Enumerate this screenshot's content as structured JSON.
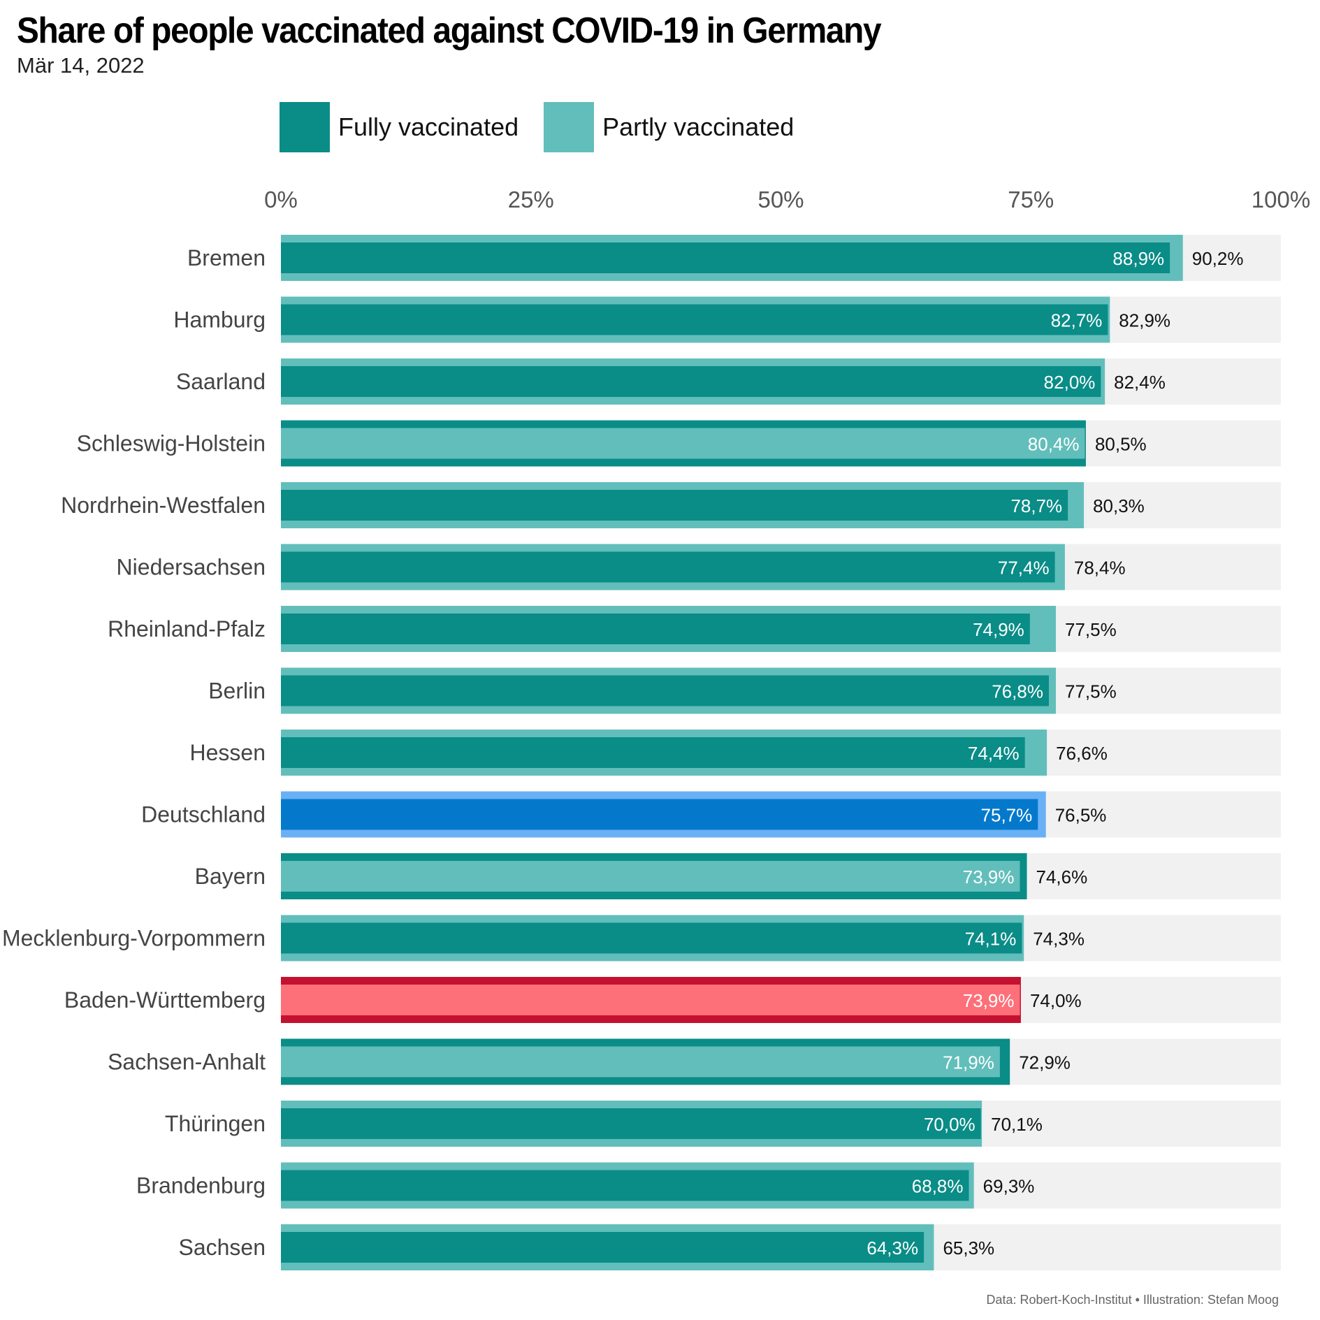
{
  "title": "Share of people vaccinated against COVID-19 in Germany",
  "subtitle": "Mär 14, 2022",
  "legend": {
    "fully": {
      "label": "Fully vaccinated",
      "color": "#0a8c87"
    },
    "partly": {
      "label": "Partly vaccinated",
      "color": "#62bebb"
    }
  },
  "footer": "Data: Robert-Koch-Institut • Illustration: Stefan Moog",
  "colors": {
    "track": "#f1f1f1",
    "highlight_deutschland": {
      "fully": "#0479cc",
      "partly": "#6ab0f5"
    },
    "highlight_bw": {
      "fully": "#c4112f",
      "partly": "#fd707a"
    }
  },
  "chart_data": {
    "type": "bar",
    "orientation": "horizontal",
    "xlim": [
      0,
      100
    ],
    "xticks": [
      "0%",
      "25%",
      "50%",
      "75%",
      "100%"
    ],
    "categories": [
      "Bremen",
      "Hamburg",
      "Saarland",
      "Schleswig-Holstein",
      "Nordrhein-Westfalen",
      "Niedersachsen",
      "Rheinland-Pfalz",
      "Berlin",
      "Hessen",
      "Deutschland",
      "Bayern",
      "Mecklenburg-Vorpommern",
      "Baden-Württemberg",
      "Sachsen-Anhalt",
      "Thüringen",
      "Brandenburg",
      "Sachsen"
    ],
    "series": [
      {
        "name": "Fully vaccinated",
        "values": [
          88.9,
          82.7,
          82.0,
          80.4,
          78.7,
          77.4,
          74.9,
          76.8,
          74.4,
          75.7,
          73.9,
          74.1,
          73.9,
          71.9,
          70.0,
          68.8,
          64.3
        ],
        "labels": [
          "88,9%",
          "82,7%",
          "82,0%",
          "80,4%",
          "78,7%",
          "77,4%",
          "74,9%",
          "76,8%",
          "74,4%",
          "75,7%",
          "73,9%",
          "74,1%",
          "73,9%",
          "71,9%",
          "70,0%",
          "68,8%",
          "64,3%"
        ]
      },
      {
        "name": "Partly vaccinated",
        "values": [
          90.2,
          82.9,
          82.4,
          80.5,
          80.3,
          78.4,
          77.5,
          77.5,
          76.6,
          76.5,
          74.6,
          74.3,
          74.0,
          72.9,
          70.1,
          69.3,
          65.3
        ],
        "labels": [
          "90,2%",
          "82,9%",
          "82,4%",
          "80,5%",
          "80,3%",
          "78,4%",
          "77,5%",
          "77,5%",
          "76,6%",
          "76,5%",
          "74,6%",
          "74,3%",
          "74,0%",
          "72,9%",
          "70,1%",
          "69,3%",
          "65,3%"
        ]
      }
    ],
    "swapped_colors": [
      "Schleswig-Holstein",
      "Bayern",
      "Sachsen-Anhalt"
    ],
    "highlighted": [
      "Deutschland",
      "Baden-Württemberg"
    ],
    "legend_position": "top"
  }
}
